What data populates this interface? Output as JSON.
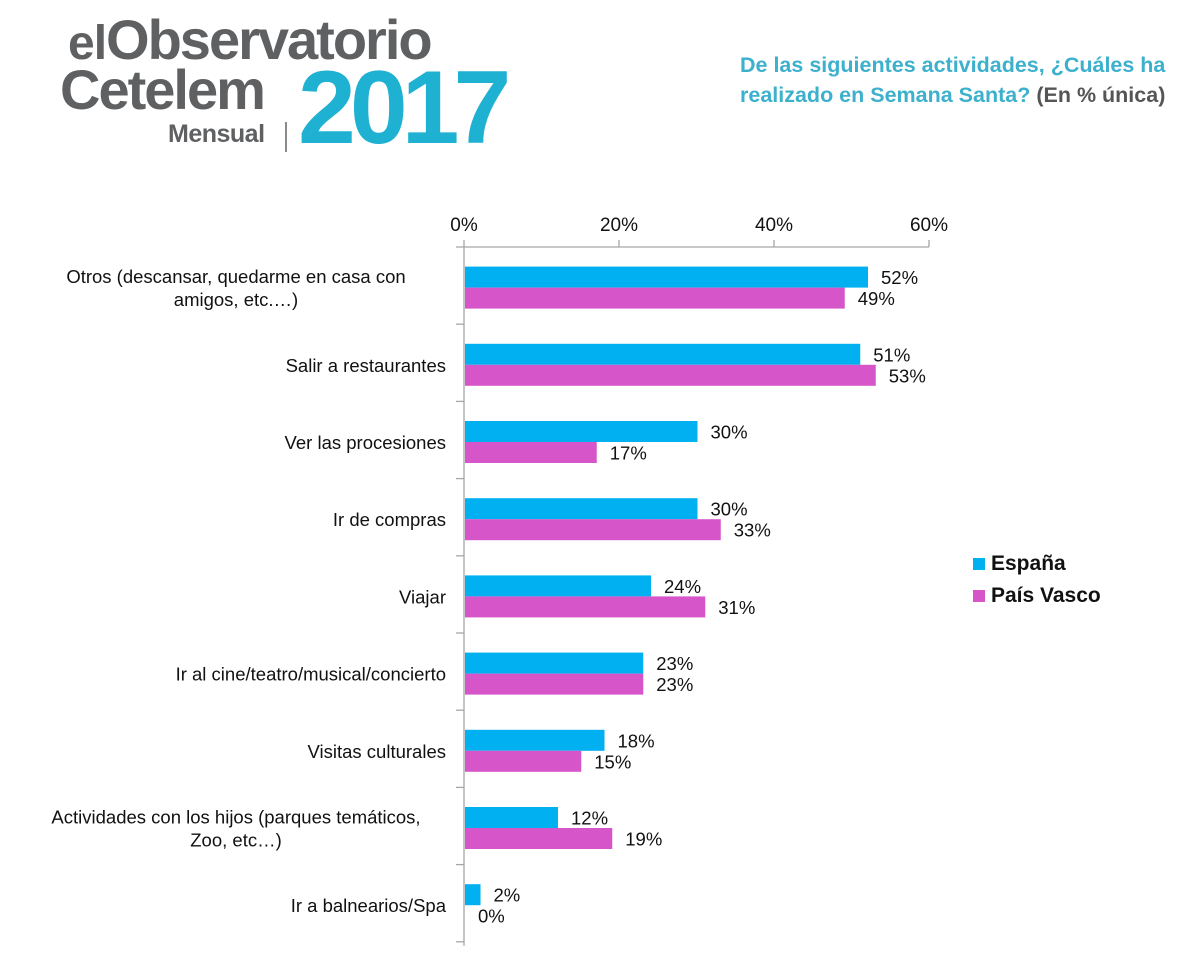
{
  "logo": {
    "line1_prefix": "el",
    "line1_main": "Observatorio",
    "line2": "Cetelem",
    "year": "2017",
    "subtitle": "Mensual"
  },
  "question": {
    "text": "De las siguientes actividades, ¿Cuáles ha realizado en Semana Santa?",
    "unit": "(En %  única)"
  },
  "colors": {
    "espana": "#00b0f0",
    "pais_vasco": "#d655c8",
    "axis": "#a6a6a6",
    "title_accent": "#3cb0cc"
  },
  "legend": [
    {
      "label": "España",
      "color": "#00b0f0"
    },
    {
      "label": "País Vasco",
      "color": "#d655c8"
    }
  ],
  "chart_data": {
    "type": "bar",
    "orientation": "horizontal",
    "title": "De las siguientes actividades, ¿Cuáles ha realizado en Semana Santa? (En % única)",
    "xlabel": "",
    "ylabel": "",
    "xlim": [
      0,
      60
    ],
    "x_ticks": [
      "0%",
      "20%",
      "40%",
      "60%"
    ],
    "x_tick_values": [
      0,
      20,
      40,
      60
    ],
    "x_axis_position": "top",
    "grid": false,
    "legend_position": "right",
    "categories": [
      [
        "Otros (descansar, quedarme en casa con",
        "amigos, etc.…)"
      ],
      [
        "Salir a restaurantes"
      ],
      [
        "Ver las procesiones"
      ],
      [
        "Ir de compras"
      ],
      [
        "Viajar"
      ],
      [
        "Ir al cine/teatro/musical/concierto"
      ],
      [
        "Visitas culturales"
      ],
      [
        "Actividades con los hijos (parques temáticos,",
        "Zoo, etc…)"
      ],
      [
        "Ir a balnearios/Spa"
      ]
    ],
    "series": [
      {
        "name": "España",
        "color": "#00b0f0",
        "values": [
          52,
          51,
          30,
          30,
          24,
          23,
          18,
          12,
          2
        ],
        "labels": [
          "52%",
          "51%",
          "30%",
          "30%",
          "24%",
          "23%",
          "18%",
          "12%",
          "2%"
        ]
      },
      {
        "name": "País Vasco",
        "color": "#d655c8",
        "values": [
          49,
          53,
          17,
          33,
          31,
          23,
          15,
          19,
          0
        ],
        "labels": [
          "49%",
          "53%",
          "17%",
          "33%",
          "31%",
          "23%",
          "15%",
          "19%",
          "0%"
        ]
      }
    ]
  }
}
